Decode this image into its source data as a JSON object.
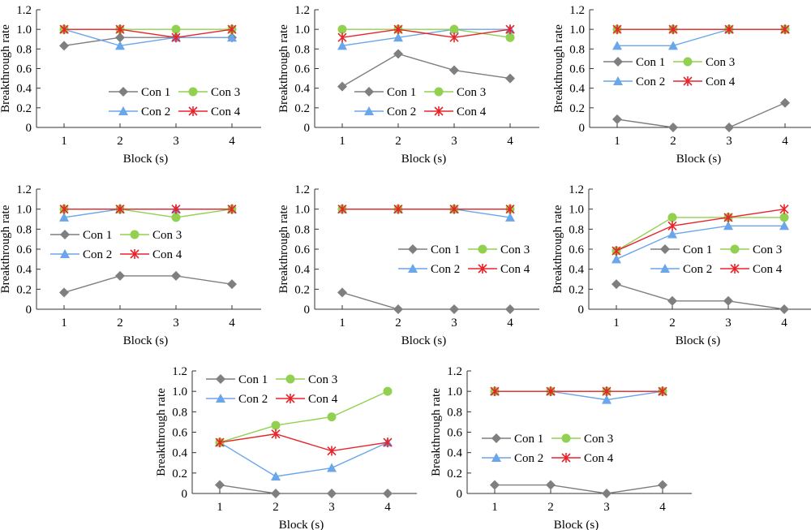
{
  "chart_data": [
    {
      "type": "line",
      "xlabel": "Block (s)",
      "ylabel": "Breakthrough rate",
      "categories": [
        "1",
        "2",
        "3",
        "4"
      ],
      "ylim": [
        0,
        1.2
      ],
      "yticks": [
        "0",
        "0.2",
        "0.4",
        "0.6",
        "0.8",
        "1.0",
        "1.2"
      ],
      "grid": false,
      "legend": "bottom-right",
      "series": [
        {
          "name": "Con 1",
          "values": [
            0.833,
            0.917,
            0.917,
            0.917
          ]
        },
        {
          "name": "Con 2",
          "values": [
            1,
            0.833,
            0.917,
            0.917
          ]
        },
        {
          "name": "Con 3",
          "values": [
            1,
            1,
            1,
            1
          ]
        },
        {
          "name": "Con 4",
          "values": [
            1,
            1,
            0.917,
            1
          ]
        }
      ]
    },
    {
      "type": "line",
      "xlabel": "Block (s)",
      "ylabel": "Breakthrough rate",
      "categories": [
        "1",
        "2",
        "3",
        "4"
      ],
      "ylim": [
        0,
        1.2
      ],
      "yticks": [
        "0",
        "0.2",
        "0.4",
        "0.6",
        "0.8",
        "1.0",
        "1.2"
      ],
      "grid": false,
      "legend": "bottom-center",
      "series": [
        {
          "name": "Con 1",
          "values": [
            0.417,
            0.75,
            0.583,
            0.5
          ]
        },
        {
          "name": "Con 2",
          "values": [
            0.833,
            0.917,
            1,
            1
          ]
        },
        {
          "name": "Con 3",
          "values": [
            1,
            1,
            1,
            0.917
          ]
        },
        {
          "name": "Con 4",
          "values": [
            0.917,
            1,
            0.917,
            1
          ]
        }
      ]
    },
    {
      "type": "line",
      "xlabel": "Block (s)",
      "ylabel": "Breakthrough rate",
      "categories": [
        "1",
        "2",
        "3",
        "4"
      ],
      "ylim": [
        0,
        1.2
      ],
      "yticks": [
        "0",
        "0.2",
        "0.4",
        "0.6",
        "0.8",
        "1.0",
        "1.2"
      ],
      "grid": false,
      "legend": "center-left",
      "series": [
        {
          "name": "Con 1",
          "values": [
            0.083,
            0,
            0,
            0.25
          ]
        },
        {
          "name": "Con 2",
          "values": [
            0.833,
            0.833,
            1,
            1
          ]
        },
        {
          "name": "Con 3",
          "values": [
            1,
            1,
            1,
            1
          ]
        },
        {
          "name": "Con 4",
          "values": [
            1,
            1,
            1,
            1
          ]
        }
      ]
    },
    {
      "type": "line",
      "xlabel": "Block (s)",
      "ylabel": "Breakthrough rate",
      "categories": [
        "1",
        "2",
        "3",
        "4"
      ],
      "ylim": [
        0,
        1.2
      ],
      "yticks": [
        "0",
        "0.2",
        "0.4",
        "0.6",
        "0.8",
        "1.0",
        "1.2"
      ],
      "grid": false,
      "legend": "center-left",
      "series": [
        {
          "name": "Con 1",
          "values": [
            0.167,
            0.333,
            0.333,
            0.25
          ]
        },
        {
          "name": "Con 2",
          "values": [
            0.917,
            1,
            1,
            1
          ]
        },
        {
          "name": "Con 3",
          "values": [
            1,
            1,
            0.917,
            1
          ]
        },
        {
          "name": "Con 4",
          "values": [
            1,
            1,
            1,
            1
          ]
        }
      ]
    },
    {
      "type": "line",
      "xlabel": "Block (s)",
      "ylabel": "Breakthrough rate",
      "categories": [
        "1",
        "2",
        "3",
        "4"
      ],
      "ylim": [
        0,
        1.2
      ],
      "yticks": [
        "0",
        "0.2",
        "0.4",
        "0.6",
        "0.8",
        "1.0",
        "1.2"
      ],
      "grid": false,
      "legend": "center-right",
      "series": [
        {
          "name": "Con 1",
          "values": [
            0.167,
            0,
            0,
            0
          ]
        },
        {
          "name": "Con 2",
          "values": [
            1,
            1,
            1,
            0.917
          ]
        },
        {
          "name": "Con 3",
          "values": [
            1,
            1,
            1,
            1
          ]
        },
        {
          "name": "Con 4",
          "values": [
            1,
            1,
            1,
            1
          ]
        }
      ]
    },
    {
      "type": "line",
      "xlabel": "Block (s)",
      "ylabel": "Breakthrough rate",
      "categories": [
        "1",
        "2",
        "3",
        "4"
      ],
      "ylim": [
        0,
        1.2
      ],
      "yticks": [
        "0",
        "0.2",
        "0.4",
        "0.6",
        "0.8",
        "1.0",
        "1.2"
      ],
      "grid": false,
      "legend": "center-right",
      "series": [
        {
          "name": "Con 1",
          "values": [
            0.25,
            0.083,
            0.083,
            0
          ]
        },
        {
          "name": "Con 2",
          "values": [
            0.5,
            0.75,
            0.833,
            0.833
          ]
        },
        {
          "name": "Con 3",
          "values": [
            0.583,
            0.917,
            0.917,
            0.917
          ]
        },
        {
          "name": "Con 4",
          "values": [
            0.583,
            0.833,
            0.917,
            1
          ]
        }
      ]
    },
    {
      "type": "line",
      "xlabel": "Block (s)",
      "ylabel": "Breakthrough rate",
      "categories": [
        "1",
        "2",
        "3",
        "4"
      ],
      "ylim": [
        0,
        1.2
      ],
      "yticks": [
        "0",
        "0.2",
        "0.4",
        "0.6",
        "0.8",
        "1.0",
        "1.2"
      ],
      "grid": false,
      "legend": "top-left",
      "series": [
        {
          "name": "Con 1",
          "values": [
            0.083,
            0,
            0,
            0
          ]
        },
        {
          "name": "Con 2",
          "values": [
            0.5,
            0.167,
            0.25,
            0.5
          ]
        },
        {
          "name": "Con 3",
          "values": [
            0.5,
            0.667,
            0.75,
            1
          ]
        },
        {
          "name": "Con 4",
          "values": [
            0.5,
            0.583,
            0.417,
            0.5
          ]
        }
      ]
    },
    {
      "type": "line",
      "xlabel": "Block (s)",
      "ylabel": "Breakthrough rate",
      "categories": [
        "1",
        "2",
        "3",
        "4"
      ],
      "ylim": [
        0,
        1.2
      ],
      "yticks": [
        "0",
        "0.2",
        "0.4",
        "0.6",
        "0.8",
        "1.0",
        "1.2"
      ],
      "grid": false,
      "legend": "bottom-left",
      "series": [
        {
          "name": "Con 1",
          "values": [
            0.083,
            0.083,
            0,
            0.083
          ]
        },
        {
          "name": "Con 2",
          "values": [
            1,
            1,
            0.917,
            1
          ]
        },
        {
          "name": "Con 3",
          "values": [
            1,
            1,
            1,
            1
          ]
        },
        {
          "name": "Con 4",
          "values": [
            1,
            1,
            1,
            1
          ]
        }
      ]
    }
  ],
  "series_colors": {
    "Con 1": "#7f7f7f",
    "Con 2": "#6aa6ea",
    "Con 3": "#92d050",
    "Con 4": "#e8232a"
  },
  "series_markers": {
    "Con 1": "diamond",
    "Con 2": "triangle",
    "Con 3": "circle",
    "Con 4": "asterisk"
  }
}
